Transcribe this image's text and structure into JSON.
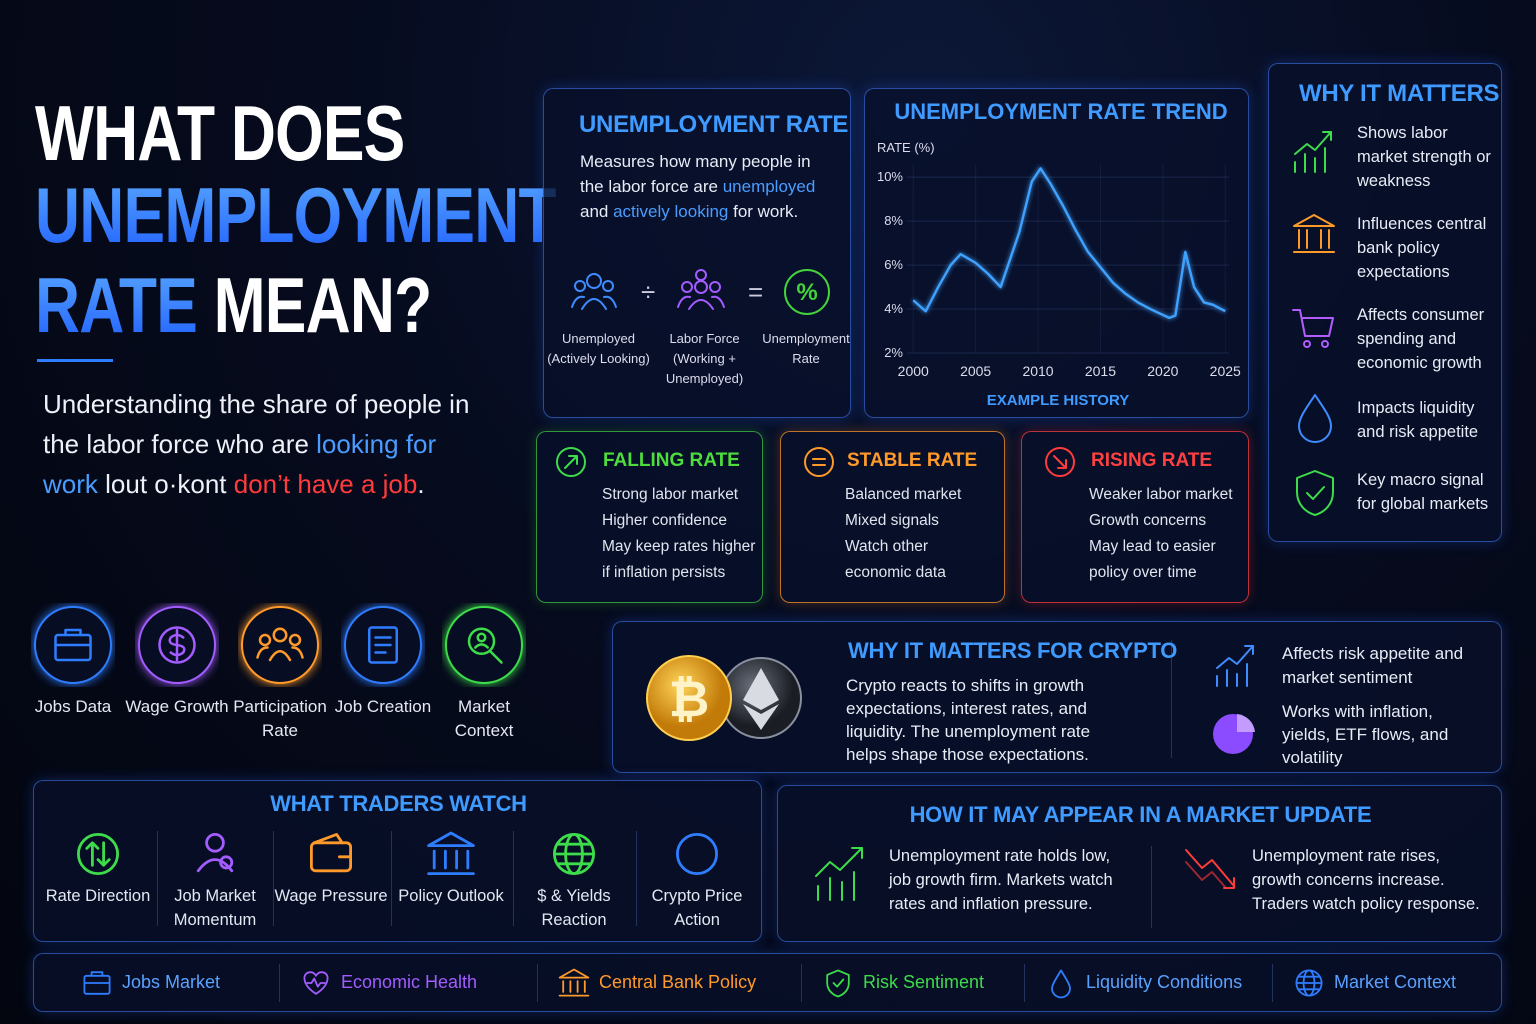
{
  "hero": {
    "title": [
      "WHAT DOES",
      "UNEMPLOYMENT",
      "RATE",
      "MEAN?"
    ],
    "subtitle": [
      "Understanding the share of people in the labor force who are ",
      "looking for work",
      " lout o·kont ",
      "don’t have a job",
      "."
    ]
  },
  "definition": {
    "title": "UNEMPLOYMENT RATE",
    "text": [
      "Measures how many people in the labor force are ",
      "unemployed",
      " and ",
      "actively looking",
      " for work."
    ],
    "terms": [
      "Unemployed (Actively Looking)",
      "Labor Force (Working + Unemployed)",
      "Unemployment Rate"
    ],
    "operators": [
      "÷",
      "="
    ]
  },
  "chart_data": {
    "type": "line",
    "title": "UNEMPLOYMENT RATE TREND",
    "y_label": "RATE (%)",
    "x_label": "EXAMPLE HISTORY",
    "x": [
      2000,
      2001,
      2002,
      2003,
      2003.8,
      2005,
      2006,
      2007,
      2008.5,
      2009.5,
      2010.2,
      2011,
      2012,
      2013,
      2014,
      2015,
      2016,
      2017,
      2018,
      2019,
      2020.5,
      2021,
      2021.8,
      2022.5,
      2023.3,
      2024,
      2025
    ],
    "series": [
      {
        "color": "#3fa2ff",
        "values": [
          4.4,
          3.9,
          5.0,
          6.0,
          6.5,
          6.1,
          5.6,
          5.0,
          7.5,
          9.8,
          10.4,
          9.7,
          8.7,
          7.6,
          6.6,
          5.9,
          5.2,
          4.7,
          4.3,
          4.0,
          3.6,
          3.7,
          6.6,
          5.0,
          4.3,
          4.2,
          3.9
        ]
      }
    ],
    "xlim": [
      1999.5,
      2025.3
    ],
    "ylim": [
      2,
      10.6
    ],
    "xticks": [
      2000,
      2005,
      2010,
      2015,
      2020,
      2025
    ],
    "yticks": [
      {
        "value": 2,
        "label": "2%"
      },
      {
        "value": 4,
        "label": "4%"
      },
      {
        "value": 6,
        "label": "6%"
      },
      {
        "value": 8,
        "label": "8%"
      },
      {
        "value": 10,
        "label": "10%"
      }
    ],
    "grid": true
  },
  "scenarios": [
    {
      "title": "FALLING RATE",
      "lines": [
        "Strong labor market",
        "Higher confidence",
        "May keep rates higher if inflation persists"
      ]
    },
    {
      "title": "STABLE RATE",
      "lines": [
        "Balanced market",
        "Mixed signals",
        "Watch other economic data"
      ]
    },
    {
      "title": "RISING RATE",
      "lines": [
        "Weaker labor market",
        "Growth concerns",
        "May lead to easier policy over time"
      ]
    }
  ],
  "why_it_matters": {
    "title": "WHY IT MATTERS",
    "items": [
      "Shows labor market strength or weakness",
      "Influences central bank policy expectations",
      "Affects consumer spending and economic growth",
      "Impacts liquidity and risk appetite",
      "Key macro signal for global markets"
    ]
  },
  "topics": [
    "Jobs Data",
    "Wage Growth",
    "Participation Rate",
    "Job Creation",
    "Market Context"
  ],
  "crypto": {
    "title": "WHY IT MATTERS FOR CRYPTO",
    "text": "Crypto reacts to shifts in growth expectations, interest rates, and liquidity. The unemployment rate helps shape those expectations.",
    "points": [
      "Affects risk appetite and market sentiment",
      "Works with inflation, yields, ETF flows, and volatility"
    ]
  },
  "traders": {
    "title": "WHAT TRADERS WATCH",
    "items": [
      "Rate Direction",
      "Job Market Momentum",
      "Wage Pressure",
      "Policy Outlook",
      "$ & Yields Reaction",
      "Crypto Price Action"
    ]
  },
  "market_update": {
    "title": "HOW IT MAY APPEAR IN A MARKET UPDATE",
    "items": [
      "Unemployment rate holds low, job growth firm. Markets watch rates and inflation pressure.",
      "Unemployment rate rises, growth concerns increase. Traders watch policy response."
    ]
  },
  "footer": [
    "Jobs Market",
    "Economic Health",
    "Central Bank Policy",
    "Risk Sentiment",
    "Liquidity Conditions",
    "Market Context"
  ]
}
